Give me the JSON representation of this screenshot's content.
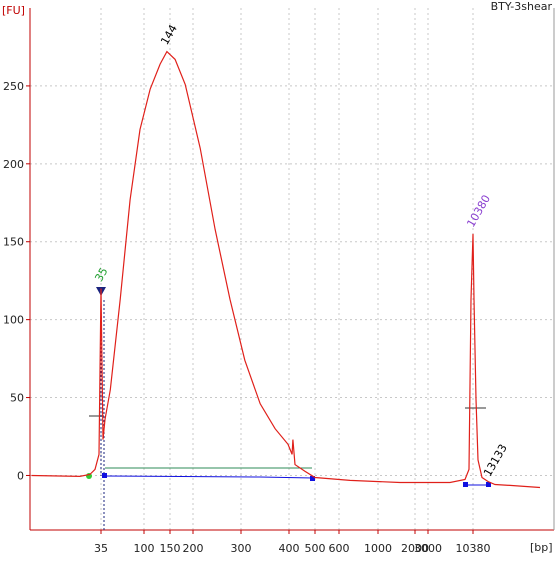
{
  "chart_data": {
    "type": "line",
    "title": "BTY-3shear",
    "y_label": "[FU]",
    "x_label": "[bp]",
    "xlim": [
      -70,
      21860
    ],
    "ylim": [
      -35,
      300
    ],
    "xticks": [
      35,
      100,
      150,
      200,
      300,
      400,
      500,
      600,
      1000,
      2000,
      3000,
      10380
    ],
    "yticks": [
      0,
      50,
      100,
      150,
      200,
      250
    ],
    "grid": true,
    "series": [
      {
        "name": "BTY-3shear",
        "color": "#e0201a",
        "x": [
          -70,
          3,
          18,
          26,
          32,
          35,
          38,
          41,
          49,
          64,
          79,
          94,
          112,
          131,
          144,
          161,
          183,
          215,
          246,
          277,
          308,
          340,
          371,
          398,
          412,
          415,
          423,
          462,
          500,
          713,
          1595,
          6608,
          9068,
          9724,
          10052,
          10380,
          10544,
          10872,
          11200,
          11856,
          12840,
          13988,
          16448,
          21368
        ],
        "values": [
          0,
          -0.6,
          0.6,
          3.9,
          13.5,
          120,
          23,
          36,
          55,
          113,
          177,
          222,
          248,
          264,
          272,
          267,
          251,
          210,
          158,
          113,
          74,
          46,
          30,
          20,
          13.5,
          23,
          7,
          2.6,
          -1.3,
          -3.2,
          -4.5,
          -4.5,
          -2.6,
          3.9,
          113,
          155,
          113,
          49,
          10,
          -1.3,
          -3.9,
          -5.8,
          -6.4,
          -7.7
        ]
      }
    ],
    "peaks": [
      {
        "value": 35,
        "y": 120,
        "color": "#1f9e2e"
      },
      {
        "value": 144,
        "y": 272,
        "color": "#000000"
      },
      {
        "value": 10380,
        "y": 155,
        "color": "#8a3fd0"
      },
      {
        "value": 13133,
        "y": -5,
        "color": "#000000"
      }
    ]
  }
}
